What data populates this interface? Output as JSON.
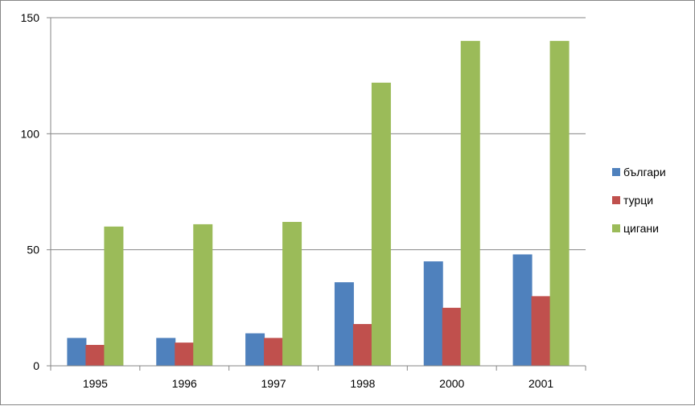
{
  "chart_data": {
    "type": "bar",
    "categories": [
      "1995",
      "1996",
      "1997",
      "1998",
      "2000",
      "2001"
    ],
    "series": [
      {
        "name": "българи",
        "color": "#4F81BD",
        "values": [
          12,
          12,
          14,
          36,
          45,
          48
        ]
      },
      {
        "name": "турци",
        "color": "#C0504D",
        "values": [
          9,
          10,
          12,
          18,
          25,
          30
        ]
      },
      {
        "name": "цигани",
        "color": "#9BBB59",
        "values": [
          60,
          61,
          62,
          122,
          140,
          140
        ]
      }
    ],
    "ylim": [
      0,
      150
    ],
    "yticks": [
      "0",
      "50",
      "100",
      "150"
    ],
    "grid": true,
    "legend_position": "right",
    "title": "",
    "xlabel": "",
    "ylabel": ""
  }
}
